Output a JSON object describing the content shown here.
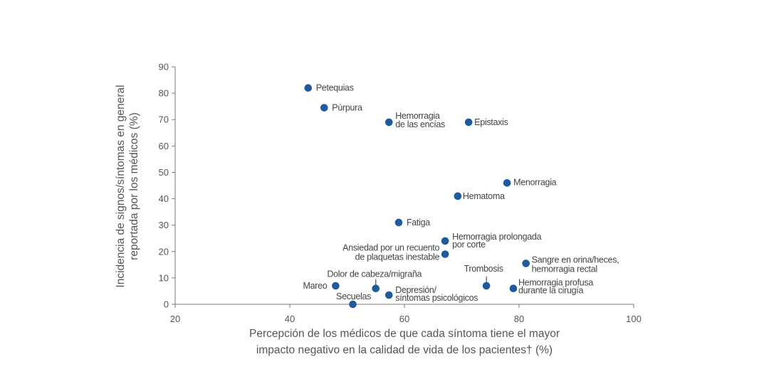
{
  "chart_data": {
    "type": "scatter",
    "xlabel": [
      "Percepción de los médicos de que cada síntoma tiene el mayor",
      "impacto negativo en la calidad de vida de los pacientes† (%)"
    ],
    "ylabel": [
      "Incidencia de signos/síntomas en general",
      "reportada por los médicos (%)"
    ],
    "xlim": [
      20,
      100
    ],
    "ylim": [
      0,
      90
    ],
    "xticks": [
      20,
      40,
      60,
      80,
      100
    ],
    "yticks": [
      0,
      10,
      20,
      30,
      40,
      50,
      60,
      70,
      80,
      90
    ],
    "grid": false,
    "point_color": "#1d5a9e",
    "points": [
      {
        "name": "Petequias",
        "label": [
          "Petequias"
        ],
        "x": 43.2,
        "y": 82
      },
      {
        "name": "Púrpura",
        "label": [
          "Púrpura"
        ],
        "x": 46,
        "y": 74.5
      },
      {
        "name": "Hemorragia de las encías",
        "label": [
          "Hemorragia",
          "de las encías"
        ],
        "x": 57.3,
        "y": 69
      },
      {
        "name": "Epistaxis",
        "label": [
          "Epistaxis"
        ],
        "x": 71.2,
        "y": 69
      },
      {
        "name": "Menorragia",
        "label": [
          "Menorragia"
        ],
        "x": 77.9,
        "y": 46
      },
      {
        "name": "Hematoma",
        "label": [
          "Hematoma"
        ],
        "x": 69.3,
        "y": 41
      },
      {
        "name": "Fatiga",
        "label": [
          "Fatiga"
        ],
        "x": 59,
        "y": 31
      },
      {
        "name": "Hemorragia prolongada por corte",
        "label": [
          "Hemorragia prolongada",
          "por corte"
        ],
        "x": 67.1,
        "y": 24
      },
      {
        "name": "Ansiedad por un recuento de plaquetas inestable",
        "label": [
          "Ansiedad por un recuento",
          "de plaquetas inestable"
        ],
        "x": 67.1,
        "y": 19
      },
      {
        "name": "Sangre en orina/heces, hemorragia rectal",
        "label": [
          "Sangre en orina/heces,",
          "hemorragia rectal"
        ],
        "x": 81.2,
        "y": 15.5
      },
      {
        "name": "Dolor de cabeza/migraña",
        "label": [
          "Dolor de cabeza/migraña"
        ],
        "x": 55,
        "y": 6
      },
      {
        "name": "Trombosis",
        "label": [
          "Trombosis"
        ],
        "x": 74.3,
        "y": 7
      },
      {
        "name": "Mareo",
        "label": [
          "Mareo"
        ],
        "x": 48,
        "y": 7
      },
      {
        "name": "Hemorragia profusa durante la cirugía",
        "label": [
          "Hemorragia profusa",
          "durante la cirugía"
        ],
        "x": 79,
        "y": 6
      },
      {
        "name": "Depresión/síntomas psicológicos",
        "label": [
          "Depresión/",
          "síntomas psicológicos"
        ],
        "x": 57.3,
        "y": 3.5
      },
      {
        "name": "Secuelas",
        "label": [
          "Secuelas"
        ],
        "x": 51,
        "y": 0
      }
    ]
  }
}
